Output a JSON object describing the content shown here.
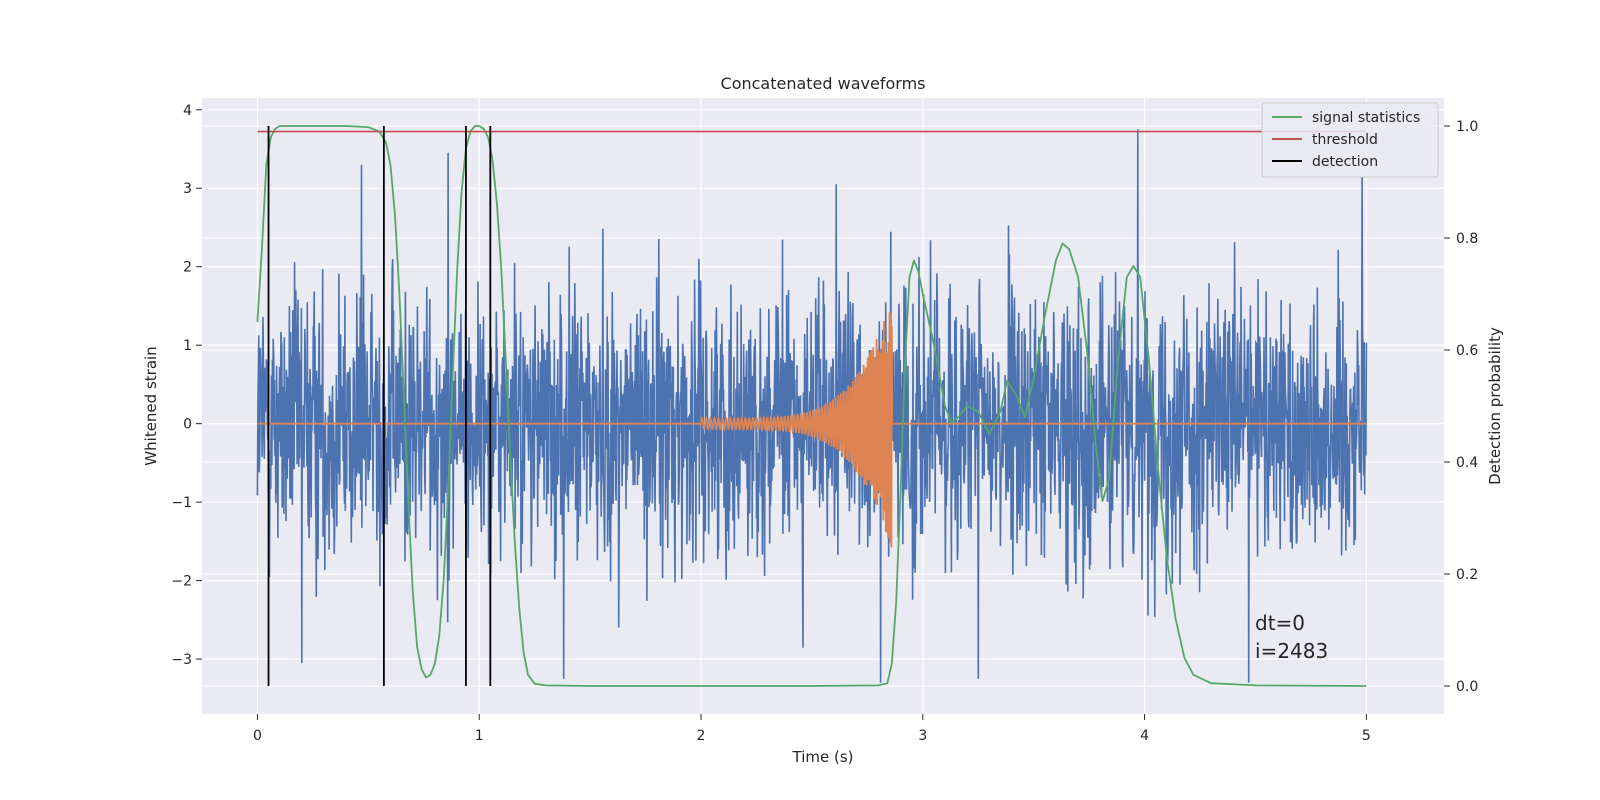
{
  "chart_data": {
    "type": "line",
    "title": "Concatenated waveforms",
    "xlabel": "Time (s)",
    "ylabel": "Whitened strain",
    "y2label": "Detection probability",
    "xlim": [
      -0.25,
      5.35
    ],
    "ylim": [
      -3.7,
      4.15
    ],
    "y2lim": [
      -0.05,
      1.05
    ],
    "xticks": [
      0,
      1,
      2,
      3,
      4,
      5
    ],
    "yticks": [
      -3,
      -2,
      -1,
      0,
      1,
      2,
      3,
      4
    ],
    "y2ticks": [
      0.0,
      0.2,
      0.4,
      0.6,
      0.8,
      1.0
    ],
    "grid": true,
    "legend_position": "top-right",
    "colors": {
      "background": "#eaeaf2",
      "grid": "#ffffff",
      "strain": "#4c72b0",
      "template": "#dd8452",
      "signal": "#55a868",
      "threshold": "#c44e52",
      "detection": "#000000"
    },
    "series": [
      {
        "name": "signal statistics",
        "axis": "right",
        "x": [
          0.0,
          0.02,
          0.04,
          0.06,
          0.08,
          0.1,
          0.15,
          0.2,
          0.3,
          0.4,
          0.5,
          0.55,
          0.58,
          0.6,
          0.62,
          0.64,
          0.66,
          0.68,
          0.7,
          0.72,
          0.74,
          0.76,
          0.78,
          0.8,
          0.82,
          0.84,
          0.86,
          0.88,
          0.9,
          0.92,
          0.94,
          0.96,
          0.98,
          1.0,
          1.02,
          1.04,
          1.06,
          1.08,
          1.1,
          1.12,
          1.14,
          1.16,
          1.18,
          1.2,
          1.22,
          1.25,
          1.3,
          1.5,
          2.0,
          2.5,
          2.8,
          2.84,
          2.86,
          2.88,
          2.9,
          2.92,
          2.94,
          2.96,
          2.98,
          3.0,
          3.05,
          3.1,
          3.13,
          3.16,
          3.2,
          3.25,
          3.3,
          3.35,
          3.38,
          3.42,
          3.46,
          3.5,
          3.55,
          3.6,
          3.63,
          3.66,
          3.7,
          3.74,
          3.78,
          3.81,
          3.84,
          3.88,
          3.92,
          3.95,
          3.98,
          4.02,
          4.06,
          4.1,
          4.14,
          4.18,
          4.22,
          4.3,
          4.5,
          5.0
        ],
        "values": [
          0.65,
          0.78,
          0.93,
          0.98,
          0.995,
          1.0,
          1.0,
          1.0,
          1.0,
          1.0,
          0.998,
          0.99,
          0.97,
          0.93,
          0.84,
          0.7,
          0.52,
          0.33,
          0.17,
          0.07,
          0.03,
          0.015,
          0.02,
          0.04,
          0.09,
          0.19,
          0.35,
          0.55,
          0.74,
          0.88,
          0.96,
          0.99,
          1.0,
          1.0,
          0.995,
          0.98,
          0.94,
          0.86,
          0.74,
          0.58,
          0.41,
          0.26,
          0.14,
          0.06,
          0.02,
          0.004,
          0.001,
          0.0,
          0.0,
          0.0,
          0.001,
          0.005,
          0.04,
          0.15,
          0.35,
          0.58,
          0.73,
          0.76,
          0.74,
          0.7,
          0.61,
          0.5,
          0.47,
          0.48,
          0.5,
          0.49,
          0.45,
          0.49,
          0.545,
          0.52,
          0.48,
          0.55,
          0.66,
          0.76,
          0.79,
          0.78,
          0.73,
          0.6,
          0.43,
          0.33,
          0.37,
          0.58,
          0.73,
          0.75,
          0.73,
          0.58,
          0.39,
          0.23,
          0.12,
          0.05,
          0.02,
          0.005,
          0.001,
          0.0
        ]
      },
      {
        "name": "threshold",
        "axis": "right",
        "x": [
          0.0,
          5.0
        ],
        "values": [
          0.99,
          0.99
        ]
      },
      {
        "name": "detection",
        "axis": "right",
        "type": "vlines",
        "x": [
          0.05,
          0.57,
          0.94,
          1.05
        ],
        "range": [
          0.0,
          1.0
        ]
      },
      {
        "axis": "left",
        "role": "whitened strain",
        "x_range": [
          0,
          5
        ],
        "amplitude_std": 0.85,
        "notable_peaks": [
          {
            "x": 0.86,
            "y": 3.45
          },
          {
            "x": 0.47,
            "y": 3.3
          },
          {
            "x": 2.61,
            "y": 3.05
          },
          {
            "x": 3.97,
            "y": 3.75
          },
          {
            "x": 4.98,
            "y": 3.15
          },
          {
            "x": 0.2,
            "y": -3.05
          },
          {
            "x": 1.38,
            "y": -3.25
          },
          {
            "x": 2.81,
            "y": -3.3
          },
          {
            "x": 3.25,
            "y": -3.25
          },
          {
            "x": 4.47,
            "y": -3.3
          }
        ]
      },
      {
        "axis": "left",
        "role": "injected chirp",
        "x_range": [
          0,
          5
        ],
        "chirp_start": 2.0,
        "chirp_end": 2.86,
        "start_amplitude": 0.07,
        "peak_amplitude": 1.6
      }
    ],
    "annotations": [
      "dt=0",
      "i=2483"
    ]
  }
}
